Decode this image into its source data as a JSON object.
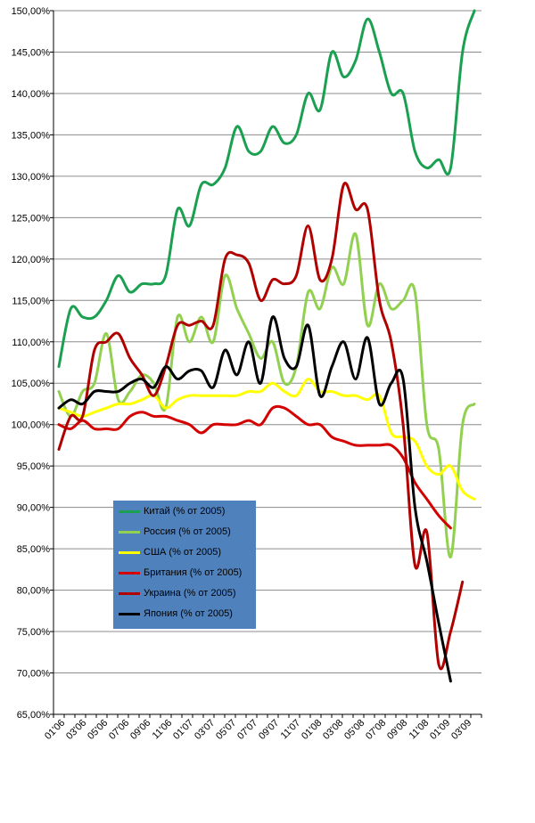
{
  "chart_data": {
    "type": "line",
    "ylim": [
      65,
      150
    ],
    "y_ticks": [
      "65,00%",
      "70,00%",
      "75,00%",
      "80,00%",
      "85,00%",
      "90,00%",
      "95,00%",
      "100,00%",
      "105,00%",
      "110,00%",
      "115,00%",
      "120,00%",
      "125,00%",
      "130,00%",
      "135,00%",
      "140,00%",
      "145,00%",
      "150,00%"
    ],
    "x_ticks": [
      "01'06",
      "03'06",
      "05'06",
      "07'06",
      "09'06",
      "11'06",
      "01'07",
      "03'07",
      "05'07",
      "07'07",
      "09'07",
      "11'07",
      "01'08",
      "03'08",
      "05'08",
      "07'08",
      "09'08",
      "11'08",
      "01'09",
      "03'09"
    ],
    "grid": "horizontal",
    "legend": "bottom-left",
    "series": [
      {
        "name": "Китай (% от 2005)",
        "color": "#1aa050",
        "values": [
          107,
          114,
          113,
          113,
          115,
          118,
          116,
          117,
          117,
          118,
          126,
          124,
          129,
          129,
          131,
          136,
          133,
          133,
          136,
          134,
          135,
          140,
          138,
          145,
          142,
          144,
          149,
          145,
          140,
          140,
          133,
          131,
          132,
          131,
          145,
          150
        ]
      },
      {
        "name": "Россия (% от 2005)",
        "color": "#92d050",
        "values": [
          104,
          101,
          104,
          105,
          111,
          103,
          104,
          106,
          105,
          102,
          113,
          110,
          113,
          110,
          118,
          114,
          111,
          108,
          110,
          105,
          107,
          116,
          114,
          119,
          117,
          123,
          112,
          117,
          114,
          115,
          116,
          100,
          97,
          84,
          100,
          102.5
        ]
      },
      {
        "name": "США (% от 2005)",
        "color": "#ffff00",
        "values": [
          102,
          101.5,
          101,
          101.5,
          102,
          102.5,
          102.5,
          103,
          103.5,
          102,
          103,
          103.5,
          103.5,
          103.5,
          103.5,
          103.5,
          104,
          104,
          105,
          104,
          103.5,
          105.5,
          104,
          104,
          103.5,
          103.5,
          103,
          103.5,
          99,
          98.5,
          98,
          95,
          94,
          95,
          92,
          91
        ]
      },
      {
        "name": "Британия (% от 2005)",
        "color": "#d40000",
        "values": [
          100,
          99.5,
          100.5,
          99.5,
          99.5,
          99.5,
          101,
          101.5,
          101,
          101,
          100.5,
          100,
          99,
          100,
          100,
          100,
          100.5,
          100,
          102,
          102,
          101,
          100,
          100,
          98.5,
          98,
          97.5,
          97.5,
          97.5,
          97.5,
          96,
          93,
          91,
          89,
          87.5
        ]
      },
      {
        "name": "Украина (% от 2005)",
        "color": "#b00000",
        "values": [
          97,
          101,
          101,
          109,
          110,
          111,
          108,
          106,
          103.5,
          107,
          112,
          112,
          112.5,
          112,
          120,
          120.5,
          119.5,
          115,
          117.5,
          117,
          118,
          124,
          117.5,
          120,
          129,
          126,
          126,
          115,
          110,
          100,
          83,
          87,
          71,
          75,
          81
        ]
      },
      {
        "name": "Япония (% от 2005)",
        "color": "#000000",
        "values": [
          102,
          103,
          102.5,
          104,
          104,
          104,
          105,
          105.5,
          104.5,
          107,
          105.5,
          106.5,
          106.5,
          104.5,
          109,
          106,
          110,
          105,
          113,
          108,
          107,
          112,
          103.5,
          107,
          110,
          105.5,
          110.5,
          102.5,
          105,
          105.5,
          90,
          83.5,
          76,
          69
        ]
      }
    ]
  }
}
